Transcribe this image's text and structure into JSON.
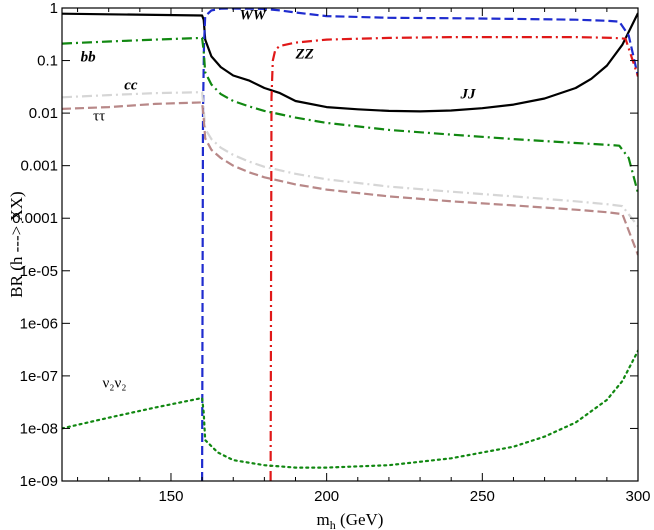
{
  "chart_data": {
    "type": "line",
    "title": "",
    "xlabel": "m",
    "xlabel_sub": "h",
    "xlabel_unit": " (GeV)",
    "ylabel": "BR (h ---> XX)",
    "xlim": [
      115,
      300
    ],
    "ylim": [
      1e-09,
      1
    ],
    "yscale": "log",
    "grid": false,
    "x_ticks": [
      150,
      200,
      250,
      300
    ],
    "x_tick_labels": [
      "150",
      "200",
      "250",
      "300"
    ],
    "y_ticks": [
      1,
      0.1,
      0.01,
      0.001,
      0.0001,
      1e-05,
      1e-06,
      1e-07,
      1e-08,
      1e-09
    ],
    "y_tick_labels": [
      "1",
      "0.1",
      "0.01",
      "0.001",
      "0.0001",
      "1e-05",
      "1e-06",
      "1e-07",
      "1e-08",
      "1e-09"
    ],
    "series": [
      {
        "key": "jj",
        "name": "JJ",
        "color": "#000000",
        "dash": "",
        "x": [
          115,
          130,
          145,
          160,
          160.5,
          161,
          163,
          166,
          170,
          175,
          180,
          185,
          190,
          200,
          210,
          220,
          230,
          240,
          250,
          260,
          270,
          280,
          285,
          290,
          295,
          300
        ],
        "y": [
          0.78,
          0.76,
          0.74,
          0.72,
          0.6,
          0.25,
          0.12,
          0.075,
          0.052,
          0.042,
          0.03,
          0.024,
          0.017,
          0.013,
          0.0118,
          0.011,
          0.0108,
          0.0112,
          0.0124,
          0.0145,
          0.019,
          0.03,
          0.045,
          0.08,
          0.2,
          0.8
        ]
      },
      {
        "key": "ww",
        "name": "WW",
        "color": "#1f2ccf",
        "dash": "9,4",
        "x": [
          160,
          160.3,
          160.6,
          161,
          163,
          166,
          170,
          175,
          180,
          185,
          190,
          200,
          220,
          240,
          260,
          280,
          290,
          294,
          297,
          300
        ],
        "y": [
          1e-09,
          0.01,
          0.2,
          0.7,
          0.9,
          0.97,
          0.98,
          0.97,
          0.96,
          0.9,
          0.82,
          0.7,
          0.65,
          0.64,
          0.62,
          0.6,
          0.57,
          0.55,
          0.3,
          0.05
        ]
      },
      {
        "key": "zz",
        "name": "ZZ",
        "color": "#e01818",
        "dash": "10,4,2,4",
        "x": [
          182,
          182.3,
          182.7,
          183.5,
          185,
          190,
          200,
          220,
          240,
          260,
          280,
          292,
          296,
          300
        ],
        "y": [
          1e-09,
          0.02,
          0.1,
          0.16,
          0.19,
          0.22,
          0.25,
          0.27,
          0.28,
          0.28,
          0.28,
          0.27,
          0.26,
          0.05
        ]
      },
      {
        "key": "bb",
        "name": "bb",
        "color": "#118811",
        "dash": "10,4,2,4",
        "x": [
          115,
          130,
          145,
          160,
          160.5,
          161,
          163,
          166,
          170,
          175,
          180,
          190,
          200,
          220,
          240,
          260,
          280,
          290,
          294,
          297,
          300
        ],
        "y": [
          0.21,
          0.23,
          0.25,
          0.27,
          0.15,
          0.06,
          0.035,
          0.023,
          0.017,
          0.0135,
          0.011,
          0.0082,
          0.0065,
          0.0048,
          0.0039,
          0.0032,
          0.0027,
          0.0025,
          0.0024,
          0.0014,
          0.0003
        ]
      },
      {
        "key": "cc",
        "name": "cc",
        "color": "#d6d6d6",
        "dash": "10,4,2,4",
        "x": [
          115,
          130,
          145,
          160,
          160.5,
          161,
          163,
          166,
          170,
          175,
          180,
          190,
          200,
          220,
          240,
          260,
          280,
          290,
          295,
          300
        ],
        "y": [
          0.02,
          0.022,
          0.024,
          0.025,
          0.012,
          0.005,
          0.0032,
          0.0022,
          0.0016,
          0.0012,
          0.00095,
          0.0007,
          0.00055,
          0.0004,
          0.00032,
          0.00026,
          0.00021,
          0.000185,
          0.00017,
          7e-05
        ]
      },
      {
        "key": "tautau",
        "name": "ττ",
        "color": "#b88888",
        "dash": "9,4",
        "x": [
          115,
          130,
          145,
          160,
          160.5,
          161,
          163,
          166,
          170,
          175,
          180,
          190,
          200,
          220,
          240,
          260,
          280,
          290,
          295,
          300
        ],
        "y": [
          0.012,
          0.013,
          0.015,
          0.016,
          0.008,
          0.0033,
          0.002,
          0.0014,
          0.001,
          0.00075,
          0.0006,
          0.00044,
          0.00035,
          0.00026,
          0.00021,
          0.000175,
          0.000145,
          0.00013,
          0.00012,
          2e-05
        ]
      },
      {
        "key": "nunu",
        "name": "ν₂ν₂",
        "color": "#118811",
        "dash": "2,4",
        "x": [
          115,
          130,
          145,
          160,
          160.5,
          161,
          165,
          170,
          180,
          190,
          200,
          220,
          240,
          260,
          270,
          280,
          290,
          295,
          300
        ],
        "y": [
          1e-08,
          1.6e-08,
          2.5e-08,
          3.8e-08,
          2e-08,
          6e-09,
          3.5e-09,
          2.5e-09,
          2e-09,
          1.8e-09,
          1.8e-09,
          2e-09,
          2.7e-09,
          4.5e-09,
          7e-09,
          1.3e-08,
          3.5e-08,
          8e-08,
          3e-07
        ]
      }
    ],
    "annotations": [
      {
        "key": "ww",
        "text": "WW",
        "x": 172,
        "y": 0.6,
        "style": "bold-italic"
      },
      {
        "key": "zz",
        "text": "ZZ",
        "x": 190,
        "y": 0.11,
        "style": "bold-italic"
      },
      {
        "key": "jj",
        "text": "JJ",
        "x": 243,
        "y": 0.019,
        "style": "bold-italic"
      },
      {
        "key": "bb",
        "text": "bb",
        "x": 121,
        "y": 0.095,
        "style": "bold-italic"
      },
      {
        "key": "cc",
        "text": "cc",
        "x": 135,
        "y": 0.028,
        "style": "bold-italic"
      },
      {
        "key": "tautau",
        "text": "ττ",
        "x": 125,
        "y": 0.0073,
        "style": "plain"
      },
      {
        "key": "nunu",
        "text": "ν₂ν₂",
        "x": 128,
        "y": 6e-08,
        "style": "plain"
      }
    ]
  }
}
